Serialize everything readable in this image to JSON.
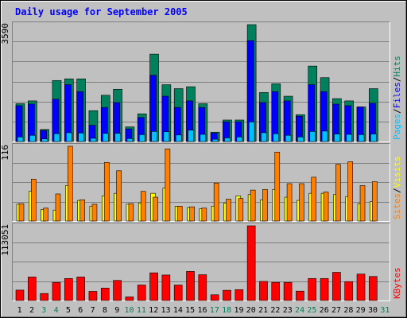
{
  "title": "Daily usage for September 2005",
  "colors": {
    "background": "#C0C0C0",
    "plot_background": "#C0C0C0",
    "title": "#0000FF",
    "gridline": "#808080",
    "axis_text": "#000000",
    "weekend_label": "#00805C",
    "hits": "#00805C",
    "files": "#0000FF",
    "pages": "#00C0FF",
    "visits": "#FFFF00",
    "sites": "#FF8000",
    "kbytes": "#FF0000",
    "slash": "#000000"
  },
  "chart_data": [
    {
      "type": "bar",
      "panel": "top",
      "ymax_label": "3590",
      "ylim": [
        0,
        3590
      ],
      "legend": [
        {
          "name": "Pages",
          "key": "pages"
        },
        {
          "name": "/",
          "key": "slash"
        },
        {
          "name": "Files",
          "key": "files"
        },
        {
          "name": "/",
          "key": "slash"
        },
        {
          "name": "Hits",
          "key": "hits"
        }
      ],
      "series": [
        {
          "name": "Hits",
          "key": "hits",
          "values": [
            1162,
            1248,
            371,
            1874,
            1925,
            1925,
            948,
            1421,
            1605,
            450,
            851,
            2684,
            1745,
            1624,
            1683,
            1162,
            287,
            660,
            660,
            3590,
            1505,
            1773,
            1391,
            824,
            2317,
            1960,
            1318,
            1248,
            1062,
            1624
          ]
        },
        {
          "name": "Files",
          "key": "files",
          "values": [
            1100,
            1150,
            337,
            1300,
            1745,
            1532,
            500,
            1046,
            1197,
            387,
            737,
            2037,
            1391,
            1046,
            1248,
            1046,
            256,
            605,
            605,
            3100,
            1197,
            1532,
            1248,
            776,
            1745,
            1532,
            1148,
            1100,
            1062,
            1176
          ]
        },
        {
          "name": "Pages",
          "key": "pages",
          "values": [
            140,
            190,
            80,
            240,
            270,
            260,
            100,
            250,
            250,
            90,
            210,
            310,
            300,
            200,
            350,
            220,
            70,
            110,
            140,
            600,
            270,
            240,
            190,
            140,
            310,
            320,
            230,
            220,
            210,
            230
          ]
        }
      ]
    },
    {
      "type": "bar",
      "panel": "middle",
      "ymax_label": "116",
      "ylim": [
        0,
        116
      ],
      "legend": [
        {
          "name": "Sites",
          "key": "sites"
        },
        {
          "name": "/",
          "key": "slash"
        },
        {
          "name": "Visits",
          "key": "visits"
        }
      ],
      "series": [
        {
          "name": "Visits",
          "key": "visits",
          "values": [
            26,
            46,
            18,
            17,
            55,
            32,
            23,
            39,
            43,
            26,
            28,
            43,
            51,
            23,
            21,
            19,
            23,
            28,
            39,
            41,
            33,
            49,
            37,
            32,
            43,
            43,
            41,
            38,
            27,
            30
          ]
        },
        {
          "name": "Sites",
          "key": "sites",
          "values": [
            27,
            65,
            20,
            42,
            116,
            33,
            26,
            91,
            78,
            27,
            46,
            37,
            112,
            23,
            22,
            20,
            59,
            34,
            35,
            48,
            49,
            107,
            58,
            58,
            68,
            45,
            88,
            92,
            55,
            61
          ]
        }
      ]
    },
    {
      "type": "bar",
      "panel": "bottom",
      "ymax_label": "113051",
      "ylim": [
        0,
        113051
      ],
      "legend": [
        {
          "name": "KBytes",
          "key": "kbytes"
        }
      ],
      "series": [
        {
          "name": "KBytes",
          "key": "kbytes",
          "values": [
            15730,
            35550,
            10620,
            27400,
            33300,
            35550,
            13860,
            18770,
            30400,
            5450,
            23450,
            41880,
            38570,
            23450,
            44000,
            39020,
            8650,
            15480,
            16400,
            113051,
            28900,
            27400,
            27400,
            14200,
            33300,
            33300,
            42670,
            28600,
            40000,
            36370
          ]
        }
      ]
    }
  ],
  "x_axis": {
    "days": [
      "1",
      "2",
      "3",
      "4",
      "5",
      "6",
      "7",
      "8",
      "9",
      "10",
      "11",
      "12",
      "13",
      "14",
      "15",
      "16",
      "17",
      "18",
      "19",
      "20",
      "21",
      "22",
      "23",
      "24",
      "25",
      "26",
      "27",
      "28",
      "29",
      "30",
      "31"
    ],
    "weekend_days": [
      "3",
      "4",
      "10",
      "11",
      "17",
      "18",
      "24",
      "25",
      "31"
    ]
  }
}
